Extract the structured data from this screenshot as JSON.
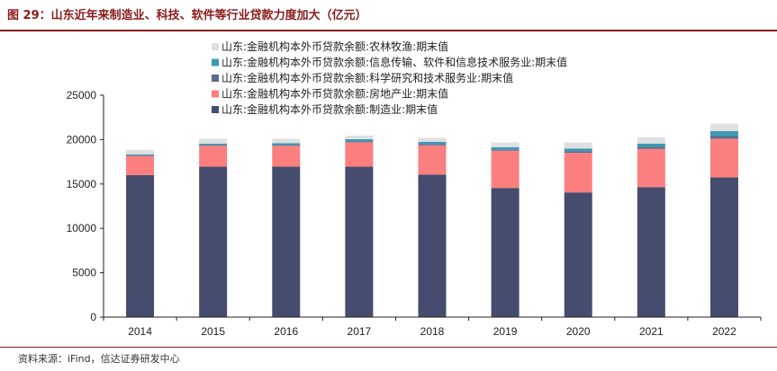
{
  "header": {
    "title": "图 29：山东近年来制造业、科技、软件等行业贷款力度加大（亿元）"
  },
  "footer": {
    "source": "资料来源：iFind，信达证券研发中心"
  },
  "chart_data": {
    "type": "bar",
    "stacked": true,
    "categories": [
      "2014",
      "2015",
      "2016",
      "2017",
      "2018",
      "2019",
      "2020",
      "2021",
      "2022"
    ],
    "ylim": [
      0,
      25000
    ],
    "yticks": [
      0,
      5000,
      10000,
      15000,
      20000,
      25000
    ],
    "grid": false,
    "legend_position": "top-right",
    "series": [
      {
        "name": "山东:金融机构本外币贷款余额:制造业:期末值",
        "color": "#454c6e",
        "values": [
          16000,
          16950,
          16950,
          16950,
          16050,
          14550,
          14050,
          14650,
          15750
        ]
      },
      {
        "name": "山东:金融机构本外币贷款余额:房地产业:期末值",
        "color": "#fb7f7f",
        "values": [
          2150,
          2350,
          2350,
          2750,
          3300,
          4200,
          4450,
          4300,
          4350
        ]
      },
      {
        "name": "山东:金融机构本外币贷款余额:科学研究和技术服务业:期末值",
        "color": "#5b6b8e",
        "values": [
          100,
          100,
          100,
          100,
          150,
          150,
          200,
          250,
          300
        ]
      },
      {
        "name": "山东:金融机构本外币贷款余额:信息传输、软件和信息技术服务业:期末值",
        "color": "#3a9ab2",
        "values": [
          100,
          150,
          200,
          250,
          250,
          250,
          300,
          350,
          550
        ]
      },
      {
        "name": "山东:金融机构本外币贷款余额:农林牧渔:期末值",
        "color": "#e0e0e0",
        "values": [
          500,
          550,
          500,
          400,
          450,
          550,
          700,
          700,
          850
        ]
      }
    ]
  }
}
